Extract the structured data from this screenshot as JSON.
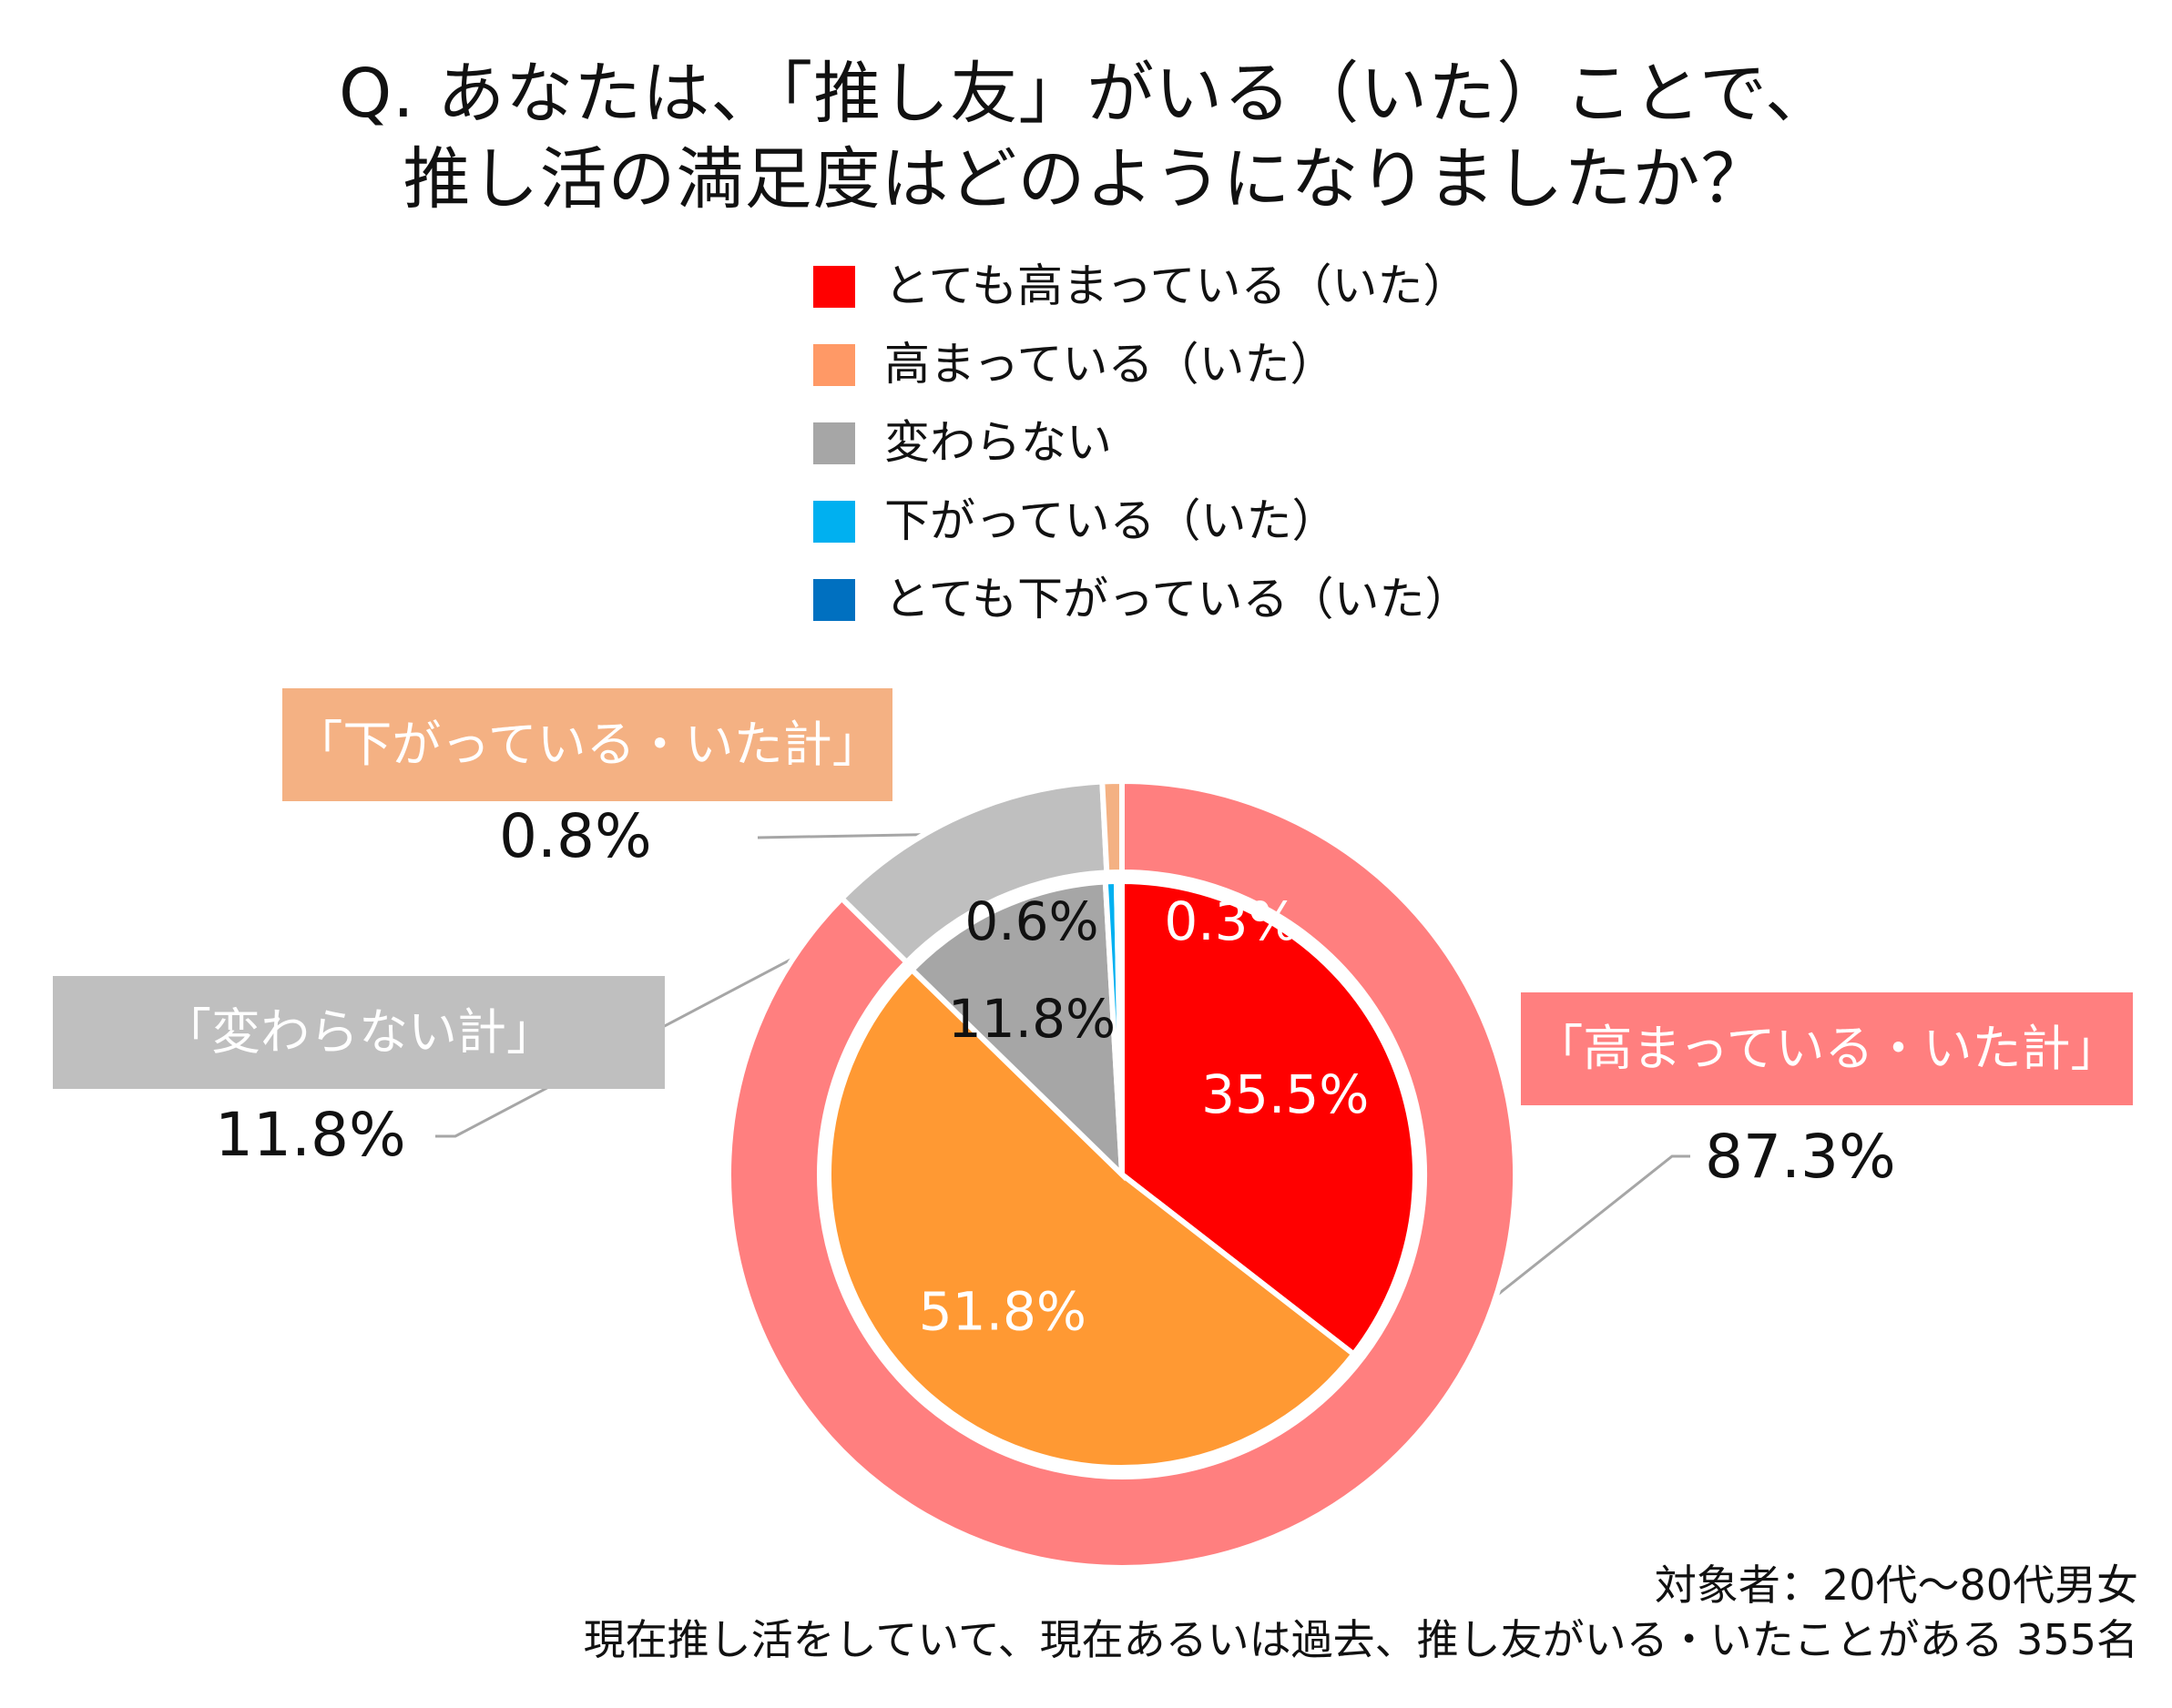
{
  "title": {
    "line1": "Q. あなたは、「推し友」がいる（いた）ことで、",
    "line2": "推し活の満足度はどのようになりましたか？"
  },
  "colors": {
    "very_increased": "#ff0000",
    "increased": "#ff9933",
    "unchanged": "#a6a6a6",
    "decreased": "#00b0f0",
    "very_decreased": "#0070c0",
    "outer_increased": "#ff7f7f",
    "outer_unchanged": "#bfbfbf",
    "outer_decreased": "#f4b183",
    "legend_increased_swatch": "#ff9966"
  },
  "legend": [
    {
      "label": "とても高まっている（いた）",
      "color": "#ff0000"
    },
    {
      "label": "高まっている（いた）",
      "color": "#ff9966"
    },
    {
      "label": "変わらない",
      "color": "#a6a6a6"
    },
    {
      "label": "下がっている（いた）",
      "color": "#00b0f0"
    },
    {
      "label": "とても下がっている（いた）",
      "color": "#0070c0"
    }
  ],
  "chart_data": {
    "type": "pie",
    "inner_series": {
      "categories": [
        "とても高まっている（いた）",
        "高まっている（いた）",
        "変わらない",
        "下がっている（いた）",
        "とても下がっている（いた）"
      ],
      "values": [
        35.5,
        51.8,
        11.8,
        0.6,
        0.3
      ],
      "labels": [
        "35.5%",
        "51.8%",
        "11.8%",
        "0.6%",
        "0.3%"
      ],
      "colors": [
        "#ff0000",
        "#ff9933",
        "#a6a6a6",
        "#00b0f0",
        "#0070c0"
      ]
    },
    "outer_series": {
      "categories": [
        "「高まっている・いた計」",
        "「変わらない計」",
        "「下がっている・いた計」"
      ],
      "values": [
        87.3,
        11.8,
        0.8
      ],
      "labels": [
        "87.3%",
        "11.8%",
        "0.8%"
      ],
      "colors": [
        "#ff7f7f",
        "#bfbfbf",
        "#f4b183"
      ]
    }
  },
  "callouts": {
    "increased_total": {
      "label": "「高まっている・いた計」",
      "value": "87.3%"
    },
    "unchanged_total": {
      "label": "「変わらない計」",
      "value": "11.8%"
    },
    "decreased_total": {
      "label": "「下がっている・いた計」",
      "value": "0.8%"
    }
  },
  "footnote": {
    "line1": "対象者：20代～80代男女",
    "line2": "現在推し活をしていて、現在あるいは過去、推し友がいる・いたことがある 355名"
  }
}
